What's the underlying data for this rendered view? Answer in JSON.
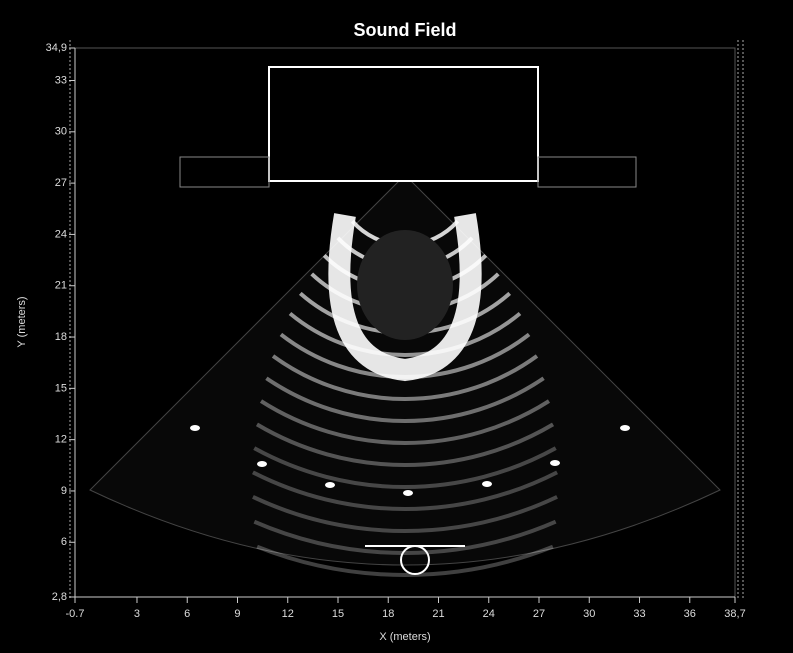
{
  "chart_data": {
    "type": "heatmap",
    "title": "Sound Field",
    "x_label": "X (meters)",
    "y_label": "Y (meters)",
    "xlim": [
      -0.7,
      38.7
    ],
    "xticks": [
      -0.7,
      3,
      6,
      9,
      12,
      15,
      18,
      21,
      24,
      27,
      30,
      33,
      36,
      {
        "value": 38.7,
        "label": "38,7"
      }
    ],
    "ylim": [
      2.8,
      34.9
    ],
    "yticks": [
      {
        "value": 2.8,
        "label": "2,8"
      },
      6,
      9,
      12,
      15,
      18,
      21,
      24,
      27,
      30,
      33,
      {
        "value": 34.9,
        "label": "34,9"
      }
    ]
  }
}
